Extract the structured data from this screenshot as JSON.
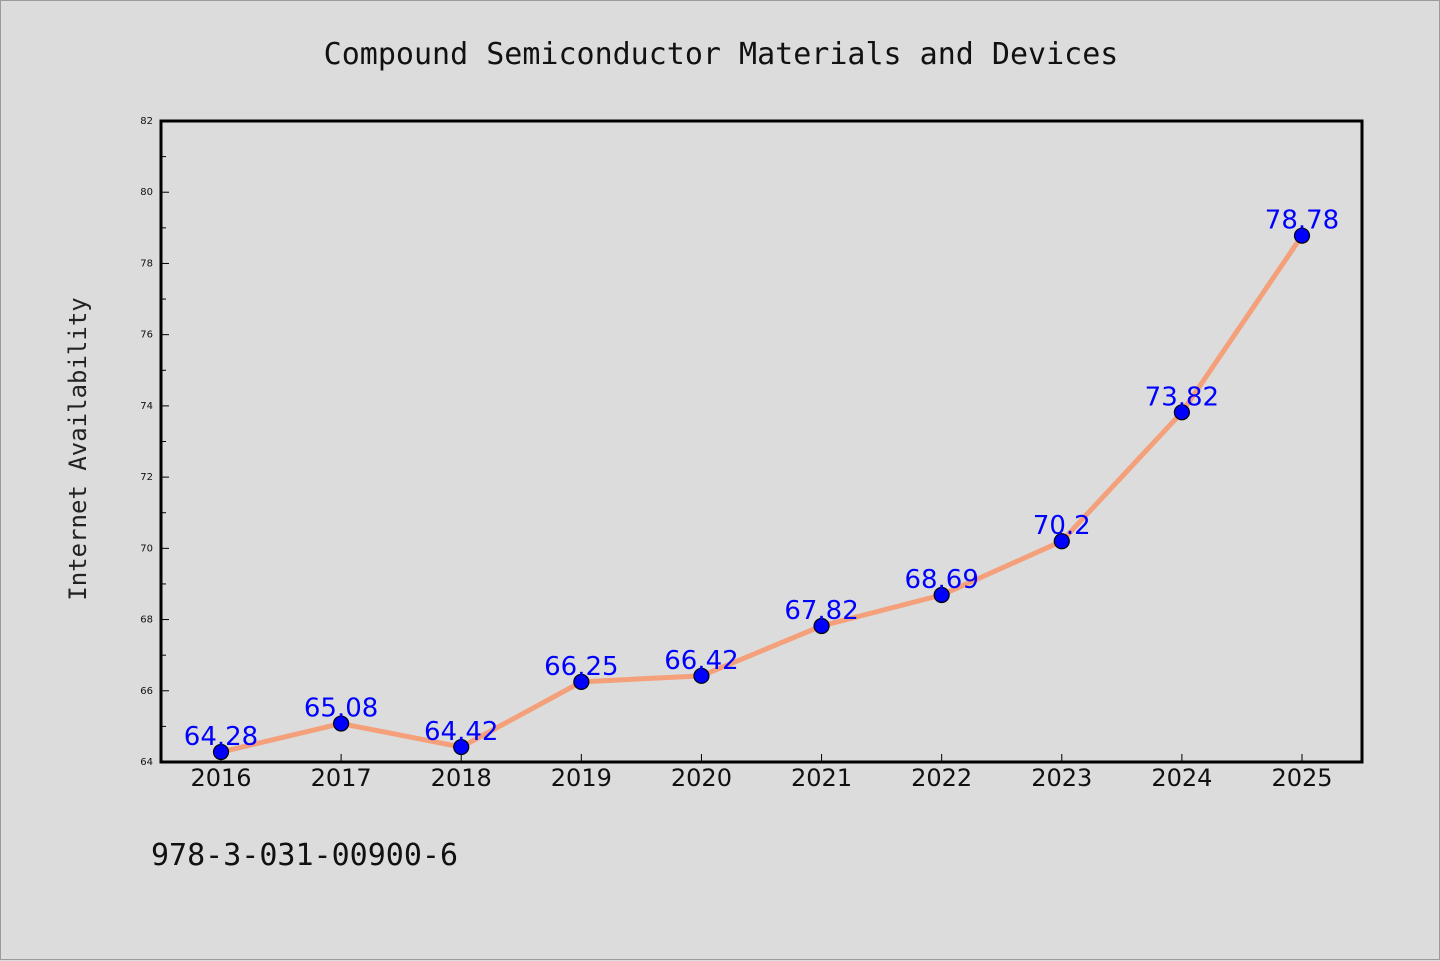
{
  "chart_data": {
    "type": "line",
    "title": "Compound Semiconductor Materials and Devices",
    "xlabel": "",
    "ylabel": "Internet Availability",
    "categories": [
      "2016",
      "2017",
      "2018",
      "2019",
      "2020",
      "2021",
      "2022",
      "2023",
      "2024",
      "2025"
    ],
    "series": [
      {
        "values": [
          64.28,
          65.08,
          64.42,
          66.25,
          66.42,
          67.82,
          68.69,
          70.2,
          73.82,
          78.78
        ],
        "labels": [
          "64.28",
          "65.08",
          "64.42",
          "66.25",
          "66.42",
          "67.82",
          "68.69",
          "70.2",
          "73.82",
          "78.78"
        ]
      }
    ],
    "ylim": [
      64,
      82
    ],
    "yticks": [
      "64",
      "66",
      "68",
      "70",
      "72",
      "74",
      "76",
      "78",
      "80",
      "82"
    ],
    "grid": false,
    "colors": {
      "line": "#f4a07a",
      "marker": "#0000ff",
      "labels": "#0000ff",
      "background": "#dcdcdc"
    }
  },
  "footnote": "978-3-031-00900-6"
}
